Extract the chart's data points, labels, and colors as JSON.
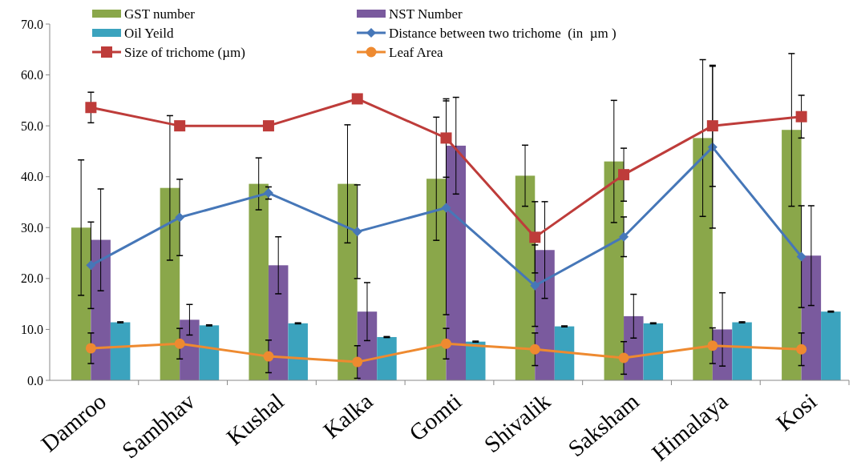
{
  "chart_data": {
    "type": "bar",
    "categories": [
      "Damroo",
      "Sambhav",
      "Kushal",
      "Kalka",
      "Gomti",
      "Shivalik",
      "Saksham",
      "Himalaya",
      "Kosi"
    ],
    "series": [
      {
        "name": "GST number",
        "color": "#8aa74a",
        "values": [
          30.0,
          37.8,
          38.6,
          38.6,
          39.6,
          40.2,
          43.0,
          47.6,
          49.2
        ],
        "errors": [
          13.3,
          14.2,
          5.1,
          11.6,
          12.1,
          6.0,
          12.0,
          15.4,
          15.0
        ]
      },
      {
        "name": "NST Number",
        "color": "#7a5a9e",
        "values": [
          27.6,
          11.9,
          22.6,
          13.5,
          46.1,
          25.6,
          12.6,
          10.0,
          24.5
        ],
        "errors": [
          10.0,
          3.0,
          5.6,
          5.7,
          9.5,
          9.5,
          4.3,
          7.2,
          9.8
        ]
      },
      {
        "name": "Oil Yeild",
        "color": "#3ba3be",
        "values": [
          11.4,
          10.8,
          11.2,
          8.5,
          7.6,
          10.6,
          11.2,
          11.4,
          13.5
        ],
        "errors": [
          0.1,
          0.1,
          0.1,
          0.1,
          0.1,
          0.1,
          0.1,
          0.1,
          0.1
        ]
      },
      {
        "name": "Distance between two trichome  (in  µm )",
        "type": "line",
        "marker": "diamond",
        "color": "#4677b8",
        "values": [
          22.6,
          32.0,
          36.8,
          29.2,
          33.9,
          18.6,
          28.2,
          45.8,
          24.3
        ],
        "errors": [
          8.5,
          7.5,
          1.2,
          9.2,
          21.0,
          8.0,
          3.9,
          15.9,
          10.0
        ]
      },
      {
        "name": "Size of trichome (µm)",
        "type": "line",
        "marker": "square",
        "color": "#be3c3a",
        "values": [
          53.6,
          50.0,
          50.0,
          55.3,
          47.6,
          28.1,
          40.4,
          50.0,
          51.8
        ],
        "errors": [
          3.0,
          null,
          null,
          null,
          7.7,
          7.0,
          5.2,
          11.9,
          4.2
        ]
      },
      {
        "name": "Leaf Area",
        "type": "line",
        "marker": "circle",
        "color": "#ee8a30",
        "values": [
          6.3,
          7.2,
          4.7,
          3.6,
          7.2,
          6.1,
          4.4,
          6.8,
          6.1
        ],
        "errors": [
          3.0,
          3.0,
          3.2,
          3.2,
          3.0,
          3.2,
          3.2,
          3.5,
          3.2
        ]
      }
    ],
    "ylim": [
      0,
      70
    ],
    "yticks": [
      {
        "value": 0,
        "label": "0.0"
      },
      {
        "value": 10,
        "label": "10.0"
      },
      {
        "value": 20,
        "label": "20.0"
      },
      {
        "value": 30,
        "label": "30.0"
      },
      {
        "value": 40,
        "label": "40.0"
      },
      {
        "value": 50,
        "label": "50.0"
      },
      {
        "value": 60,
        "label": "60.0"
      },
      {
        "value": 70,
        "label": "70.0"
      }
    ],
    "grid": false,
    "legend": "top"
  }
}
